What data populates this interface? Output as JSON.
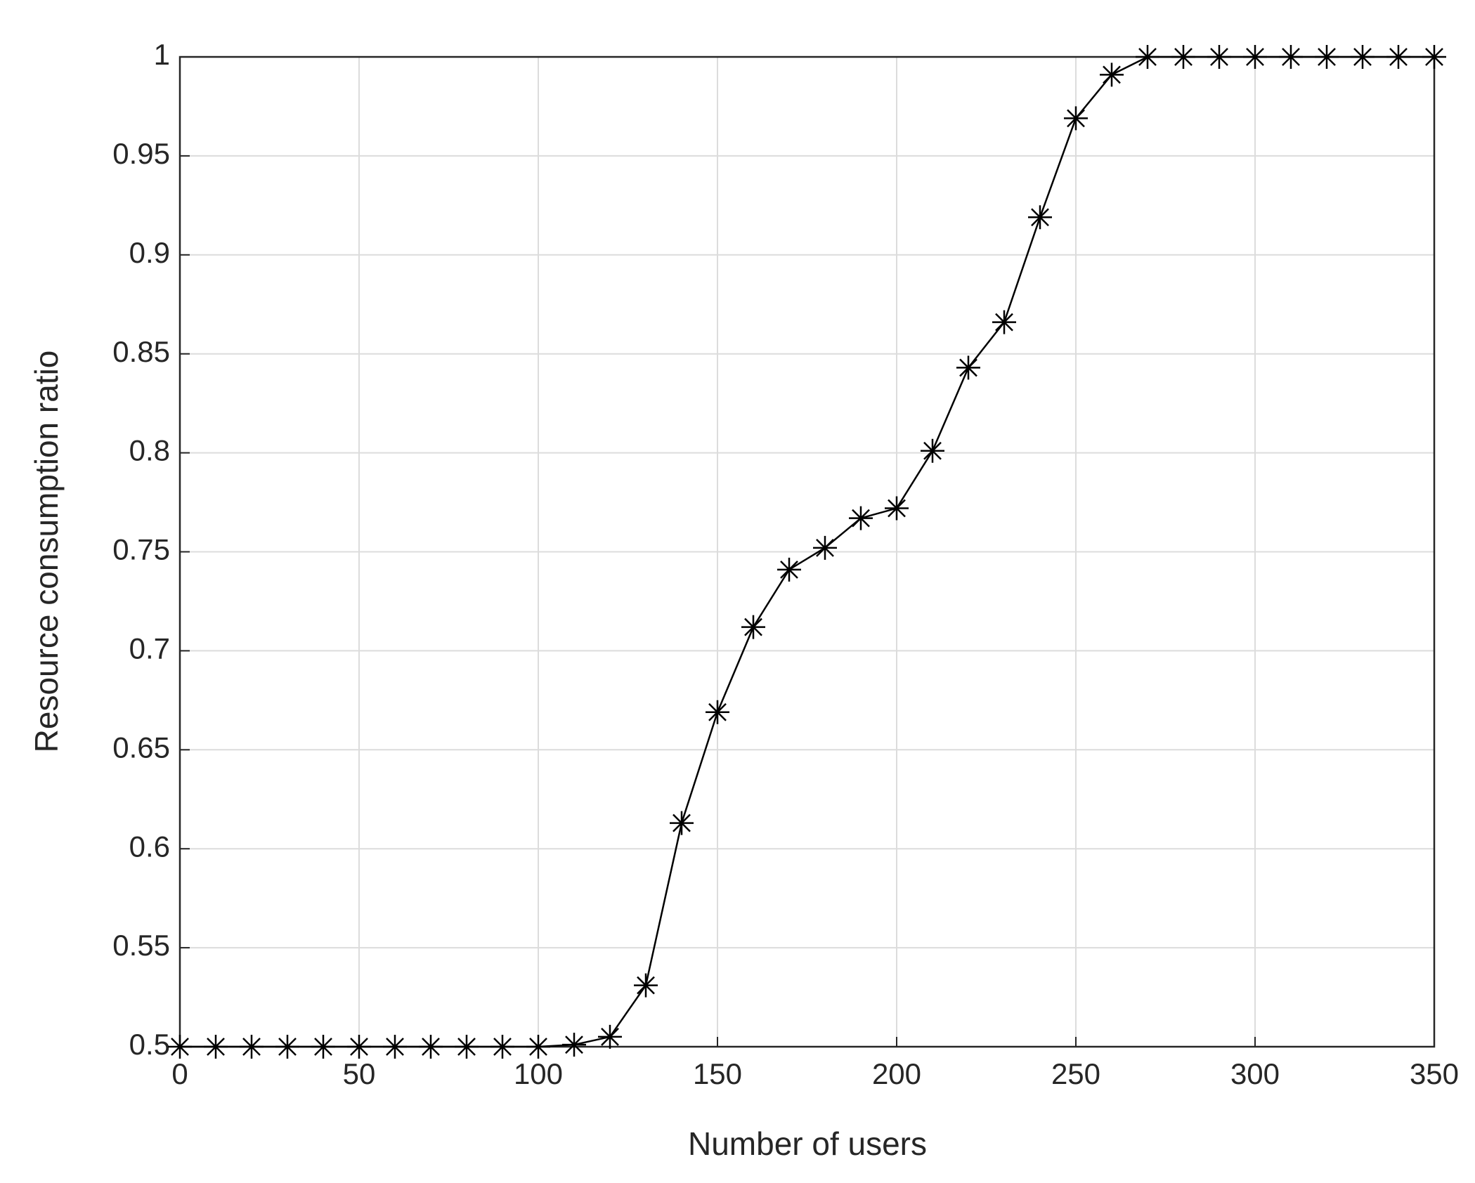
{
  "chart_data": {
    "type": "line",
    "x_label": "Number of users",
    "y_label": "Resource consumption ratio",
    "x": [
      0,
      10,
      20,
      30,
      40,
      50,
      60,
      70,
      80,
      90,
      100,
      110,
      120,
      130,
      140,
      150,
      160,
      170,
      180,
      190,
      200,
      210,
      220,
      230,
      240,
      250,
      260,
      270,
      280,
      290,
      300,
      310,
      320,
      330,
      340,
      350
    ],
    "series": [
      {
        "color": "#000000",
        "marker": "asterisk",
        "values": [
          0.5,
          0.5,
          0.5,
          0.5,
          0.5,
          0.5,
          0.5,
          0.5,
          0.5,
          0.5,
          0.5,
          0.501,
          0.505,
          0.531,
          0.613,
          0.669,
          0.712,
          0.741,
          0.752,
          0.767,
          0.772,
          0.801,
          0.843,
          0.866,
          0.919,
          0.969,
          0.991,
          1,
          1,
          1,
          1,
          1,
          1,
          1,
          1,
          1
        ]
      }
    ],
    "xlim": [
      0,
      350
    ],
    "xticks": [
      0,
      50,
      100,
      150,
      200,
      250,
      300,
      350
    ],
    "ylim": [
      0.5,
      1
    ],
    "yticks": [
      0.5,
      0.55,
      0.6,
      0.65,
      0.7,
      0.75,
      0.8,
      0.85,
      0.9,
      0.95,
      1
    ],
    "grid": true
  }
}
